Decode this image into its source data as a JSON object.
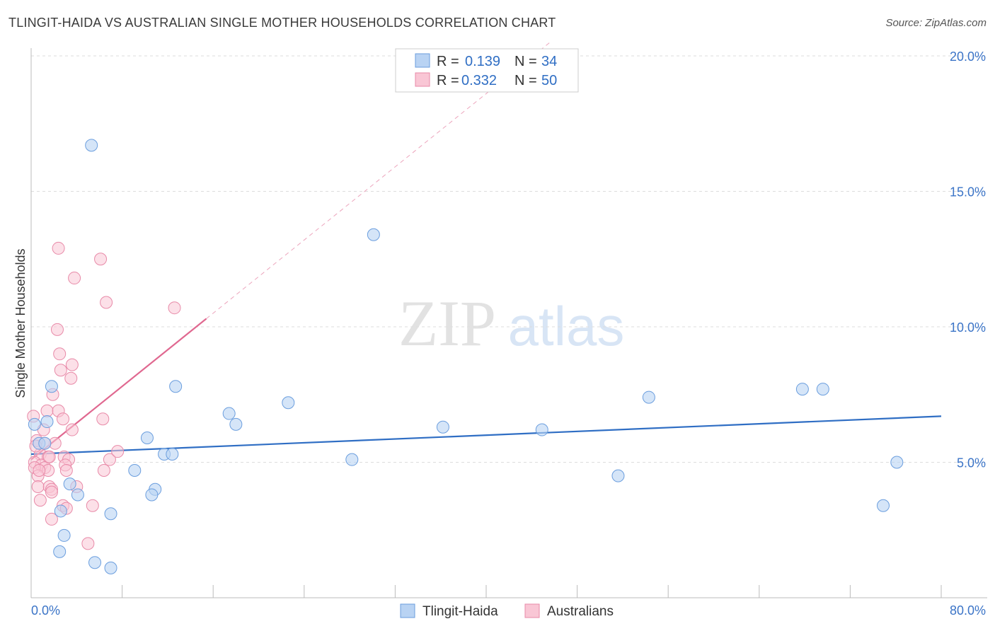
{
  "title": "TLINGIT-HAIDA VS AUSTRALIAN SINGLE MOTHER HOUSEHOLDS CORRELATION CHART",
  "source": "Source: ZipAtlas.com",
  "watermark": {
    "zip": "ZIP",
    "atlas": "atlas"
  },
  "legend": [
    {
      "r_label": "R =",
      "r_value": "0.139",
      "n_label": "N =",
      "n_value": "34"
    },
    {
      "r_label": "R =",
      "r_value": "0.332",
      "n_label": "N =",
      "n_value": "50"
    }
  ],
  "bottom_legend": [
    "Tlingit-Haida",
    "Australians"
  ],
  "chart_data": {
    "type": "scatter",
    "title": "TLINGIT-HAIDA VS AUSTRALIAN SINGLE MOTHER HOUSEHOLDS CORRELATION CHART",
    "xlabel": "",
    "ylabel": "Single Mother Households",
    "xlim": [
      0,
      80
    ],
    "ylim": [
      0,
      20
    ],
    "x_tick_labels": [
      "0.0%",
      "80.0%"
    ],
    "y_ticks": [
      5,
      10,
      15,
      20
    ],
    "y_tick_labels": [
      "5.0%",
      "10.0%",
      "15.0%",
      "20.0%"
    ],
    "colors": {
      "tlingit_fill": "#b9d3f3",
      "tlingit_stroke": "#6b9ede",
      "tlingit_line": "#2f6ec4",
      "aus_fill": "#f9c6d5",
      "aus_stroke": "#e88aa8",
      "aus_line": "#e06890"
    },
    "series": [
      {
        "name": "Tlingit-Haida",
        "trend": {
          "x": [
            0,
            80
          ],
          "y": [
            5.3,
            6.7
          ]
        },
        "points": [
          [
            5.3,
            16.7
          ],
          [
            30.1,
            13.4
          ],
          [
            12.7,
            7.8
          ],
          [
            18.0,
            6.4
          ],
          [
            22.6,
            7.2
          ],
          [
            28.2,
            5.1
          ],
          [
            36.2,
            6.3
          ],
          [
            44.9,
            6.2
          ],
          [
            51.6,
            4.5
          ],
          [
            54.3,
            7.4
          ],
          [
            67.8,
            7.7
          ],
          [
            69.6,
            7.7
          ],
          [
            76.1,
            5.0
          ],
          [
            74.9,
            3.4
          ],
          [
            1.8,
            7.8
          ],
          [
            1.4,
            6.5
          ],
          [
            0.7,
            5.7
          ],
          [
            0.3,
            6.4
          ],
          [
            1.2,
            5.7
          ],
          [
            10.2,
            5.9
          ],
          [
            11.7,
            5.3
          ],
          [
            12.4,
            5.3
          ],
          [
            9.1,
            4.7
          ],
          [
            10.9,
            4.0
          ],
          [
            10.6,
            3.8
          ],
          [
            17.4,
            6.8
          ],
          [
            3.4,
            4.2
          ],
          [
            4.1,
            3.8
          ],
          [
            2.6,
            3.2
          ],
          [
            7.0,
            3.1
          ],
          [
            2.9,
            2.3
          ],
          [
            2.5,
            1.7
          ],
          [
            5.6,
            1.3
          ],
          [
            7.0,
            1.1
          ]
        ]
      },
      {
        "name": "Australians",
        "trend": {
          "x": [
            0,
            15.4
          ],
          "y": [
            5.1,
            10.3
          ]
        },
        "points": [
          [
            2.4,
            12.9
          ],
          [
            6.1,
            12.5
          ],
          [
            3.8,
            11.8
          ],
          [
            6.6,
            10.9
          ],
          [
            12.6,
            10.7
          ],
          [
            2.3,
            9.9
          ],
          [
            2.5,
            9.0
          ],
          [
            3.6,
            8.6
          ],
          [
            2.6,
            8.4
          ],
          [
            3.5,
            8.1
          ],
          [
            1.9,
            7.5
          ],
          [
            1.4,
            6.9
          ],
          [
            2.4,
            6.9
          ],
          [
            0.2,
            6.7
          ],
          [
            2.8,
            6.6
          ],
          [
            6.3,
            6.6
          ],
          [
            3.6,
            6.2
          ],
          [
            1.1,
            6.2
          ],
          [
            0.5,
            5.8
          ],
          [
            2.1,
            5.7
          ],
          [
            1.2,
            5.7
          ],
          [
            0.8,
            5.3
          ],
          [
            1.5,
            5.2
          ],
          [
            2.9,
            5.2
          ],
          [
            0.3,
            5.0
          ],
          [
            3.3,
            5.1
          ],
          [
            6.9,
            5.1
          ],
          [
            7.6,
            5.4
          ],
          [
            0.9,
            4.9
          ],
          [
            1.2,
            4.8
          ],
          [
            3.0,
            4.9
          ],
          [
            0.3,
            4.8
          ],
          [
            1.5,
            4.7
          ],
          [
            3.1,
            4.7
          ],
          [
            6.4,
            4.7
          ],
          [
            0.6,
            4.5
          ],
          [
            0.6,
            4.1
          ],
          [
            1.6,
            4.1
          ],
          [
            1.8,
            4.0
          ],
          [
            4.0,
            4.1
          ],
          [
            1.8,
            3.9
          ],
          [
            0.8,
            3.6
          ],
          [
            2.8,
            3.4
          ],
          [
            5.4,
            3.4
          ],
          [
            3.1,
            3.3
          ],
          [
            1.8,
            2.9
          ],
          [
            5.0,
            2.0
          ],
          [
            0.7,
            4.7
          ],
          [
            1.6,
            5.2
          ],
          [
            0.4,
            5.6
          ]
        ]
      }
    ]
  }
}
